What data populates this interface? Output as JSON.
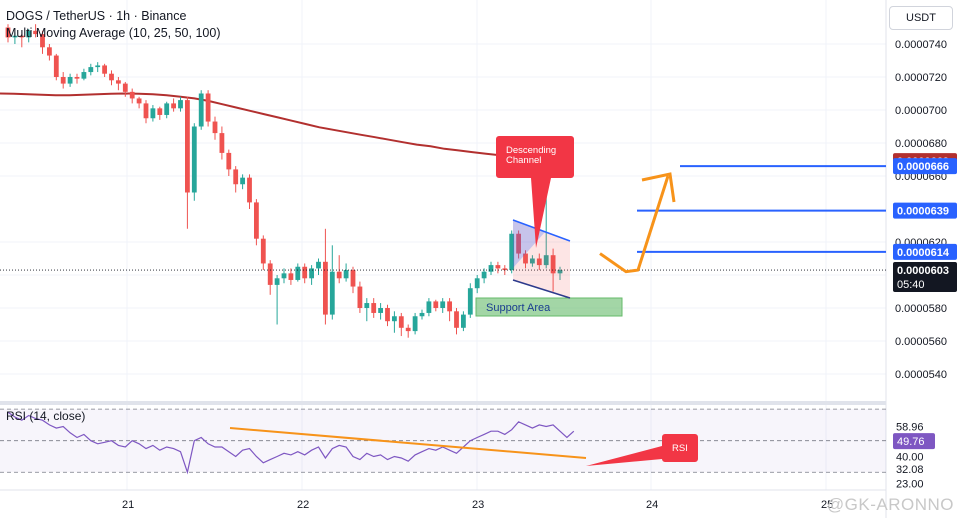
{
  "header": {
    "title": "DOGS / TetherUS · 1h · Binance",
    "indicator": "Multi Moving Average (10, 25, 50, 100)"
  },
  "rsi_header": "RSI (14, close)",
  "currency": "USDT",
  "watermark": "@GK-ARONNO",
  "colors": {
    "up": "#26a69a",
    "down": "#ef5350",
    "ma": "#b2302f",
    "hline": "#2962ff",
    "arrow": "#f7931a",
    "callout": "#f23645",
    "support": "#66bb6a",
    "rsi": "#7e57c2"
  },
  "chart_data": [
    {
      "type": "candlestick",
      "title": "DOGS / TetherUS · 1h · Binance",
      "y_ticks": [
        "0.0000740",
        "0.0000720",
        "0.0000700",
        "0.0000680",
        "0.0000660",
        "0.0000620",
        "0.0000600",
        "0.0000580",
        "0.0000560",
        "0.0000540"
      ],
      "y_tick_values": [
        740,
        720,
        700,
        680,
        660,
        620,
        600,
        580,
        560,
        540
      ],
      "ylim": [
        530,
        752
      ],
      "x_ticks": [
        "21",
        "22",
        "23",
        "24",
        "25"
      ],
      "price_labels": [
        {
          "text": "0.0000669",
          "color": "#b2302f"
        },
        {
          "text": "0.0000666",
          "color": "#2962ff"
        },
        {
          "text": "0.0000639",
          "color": "#2962ff"
        },
        {
          "text": "0.0000614",
          "color": "#2962ff"
        },
        {
          "text": "0.0000603",
          "subtext": "05:40",
          "color": "#131722"
        }
      ],
      "horizontal_levels": [
        666,
        639,
        614
      ],
      "annotations": {
        "callout": [
          "Descending",
          "Channel"
        ],
        "support": "Support Area",
        "rsi_tag": "RSI"
      },
      "candles": [
        [
          750,
          744,
          752,
          741
        ],
        [
          744,
          745,
          747,
          740
        ],
        [
          745,
          744,
          746,
          738
        ],
        [
          744,
          748,
          749,
          741
        ],
        [
          748,
          746,
          752,
          744
        ],
        [
          746,
          738,
          748,
          734
        ],
        [
          738,
          733,
          740,
          730
        ],
        [
          733,
          720,
          734,
          718
        ],
        [
          720,
          716,
          723,
          713
        ],
        [
          716,
          720,
          722,
          714
        ],
        [
          720,
          719,
          722,
          716
        ],
        [
          719,
          723,
          725,
          718
        ],
        [
          723,
          726,
          728,
          721
        ],
        [
          726,
          727,
          729,
          723
        ],
        [
          727,
          722,
          728,
          720
        ],
        [
          722,
          718,
          724,
          715
        ],
        [
          718,
          716,
          720,
          712
        ],
        [
          716,
          711,
          717,
          708
        ],
        [
          711,
          707,
          713,
          704
        ],
        [
          707,
          704,
          708,
          701
        ],
        [
          704,
          695,
          706,
          692
        ],
        [
          695,
          701,
          703,
          693
        ],
        [
          701,
          697,
          702,
          694
        ],
        [
          697,
          704,
          705,
          695
        ],
        [
          704,
          701,
          707,
          699
        ],
        [
          701,
          706,
          708,
          699
        ],
        [
          706,
          650,
          708,
          628
        ],
        [
          650,
          690,
          692,
          645
        ],
        [
          690,
          710,
          712,
          688
        ],
        [
          710,
          693,
          712,
          690
        ],
        [
          693,
          686,
          696,
          682
        ],
        [
          686,
          674,
          690,
          670
        ],
        [
          674,
          664,
          676,
          660
        ],
        [
          664,
          655,
          666,
          650
        ],
        [
          655,
          659,
          661,
          652
        ],
        [
          659,
          644,
          661,
          640
        ],
        [
          644,
          622,
          646,
          618
        ],
        [
          622,
          607,
          624,
          603
        ],
        [
          607,
          594,
          609,
          588
        ],
        [
          594,
          598,
          600,
          570
        ],
        [
          598,
          601,
          604,
          595
        ],
        [
          601,
          597,
          604,
          594
        ],
        [
          597,
          605,
          607,
          596
        ],
        [
          605,
          598,
          607,
          595
        ],
        [
          598,
          604,
          606,
          594
        ],
        [
          604,
          608,
          610,
          600
        ],
        [
          608,
          576,
          628,
          570
        ],
        [
          576,
          602,
          618,
          573
        ],
        [
          602,
          598,
          612,
          595
        ],
        [
          598,
          603,
          607,
          596
        ],
        [
          603,
          593,
          605,
          589
        ],
        [
          593,
          580,
          596,
          577
        ],
        [
          580,
          583,
          586,
          572
        ],
        [
          583,
          577,
          586,
          574
        ],
        [
          577,
          580,
          583,
          573
        ],
        [
          580,
          572,
          582,
          569
        ],
        [
          572,
          575,
          578,
          565
        ],
        [
          575,
          568,
          577,
          563
        ],
        [
          568,
          566,
          570,
          562
        ],
        [
          566,
          575,
          577,
          564
        ],
        [
          575,
          577,
          579,
          573
        ],
        [
          577,
          584,
          586,
          575
        ],
        [
          584,
          580,
          585,
          578
        ],
        [
          580,
          584,
          586,
          577
        ],
        [
          584,
          578,
          586,
          572
        ],
        [
          578,
          568,
          580,
          564
        ],
        [
          568,
          576,
          578,
          566
        ],
        [
          576,
          592,
          595,
          574
        ],
        [
          592,
          598,
          600,
          589
        ],
        [
          598,
          602,
          604,
          595
        ],
        [
          602,
          606,
          608,
          600
        ],
        [
          606,
          604,
          608,
          601
        ],
        [
          604,
          603,
          606,
          600
        ],
        [
          603,
          625,
          627,
          601
        ],
        [
          625,
          613,
          627,
          610
        ],
        [
          613,
          607,
          615,
          604
        ],
        [
          607,
          610,
          612,
          605
        ],
        [
          610,
          606,
          613,
          603
        ],
        [
          606,
          612,
          668,
          604
        ],
        [
          612,
          601,
          616,
          590
        ],
        [
          601,
          603,
          605,
          597
        ]
      ],
      "ma_series": [
        {
          "name": "MA 100",
          "values": [
            710,
            709.8,
            709.5,
            709.3,
            709,
            709,
            709.2,
            709.6,
            709.8,
            710,
            709.8,
            709.5,
            709,
            708,
            707,
            705.5,
            703.5,
            701.5,
            699.5,
            697.5,
            695.5,
            693.5,
            691.5,
            689.5,
            688,
            686.5,
            685,
            683.5,
            682,
            680.5,
            679,
            678,
            676.5,
            675.5,
            674.5,
            673.5,
            672.6
          ]
        }
      ],
      "projection": [
        [
          600,
          613
        ],
        [
          626,
          602
        ],
        [
          638,
          603
        ],
        [
          668,
          660
        ]
      ]
    },
    {
      "type": "line",
      "title": "RSI (14, close)",
      "y_labels": [
        "58.96",
        "49.76",
        "40.00",
        "32.08",
        "23.00"
      ],
      "levels": [
        70,
        50,
        30
      ],
      "ylim": [
        20,
        72
      ],
      "series": [
        {
          "name": "RSI",
          "values": [
            68,
            65,
            63,
            66,
            64,
            63,
            60,
            58,
            59,
            55,
            52,
            54,
            50,
            48,
            49,
            50,
            47,
            46,
            50,
            48,
            45,
            47,
            44,
            46,
            45,
            43,
            30,
            50,
            52,
            48,
            46,
            46,
            43,
            40,
            44,
            45,
            40,
            36,
            38,
            40,
            42,
            41,
            43,
            41,
            44,
            46,
            39,
            45,
            47,
            46,
            40,
            38,
            42,
            40,
            41,
            38,
            40,
            39,
            37,
            41,
            43,
            45,
            44,
            46,
            44,
            42,
            46,
            50,
            52,
            54,
            56,
            56,
            54,
            57,
            62,
            60,
            58,
            60,
            59,
            60,
            56,
            52,
            56
          ]
        }
      ],
      "divergence_line": [
        [
          50,
          36
        ]
      ]
    }
  ]
}
